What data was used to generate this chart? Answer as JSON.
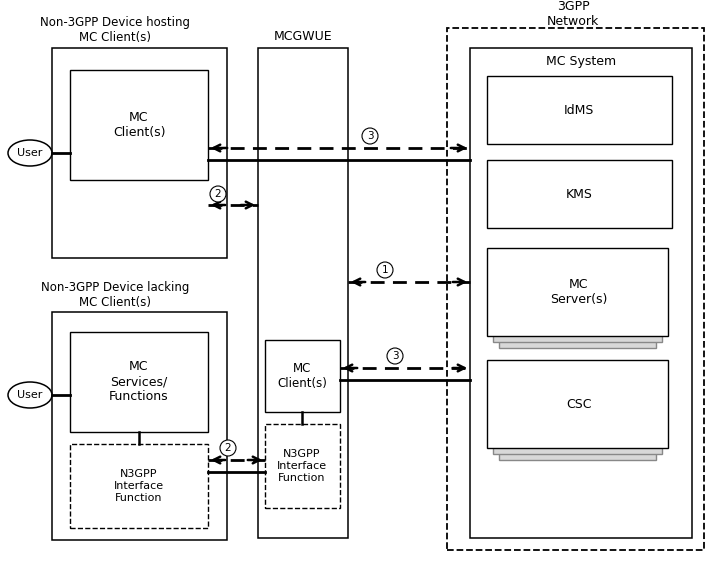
{
  "fig_width": 7.1,
  "fig_height": 5.66,
  "bg_color": "#ffffff",
  "title_3gpp": "3GPP\nNetwork",
  "title_mcsystem": "MC System",
  "label_mcgwue": "MCGWUE",
  "label_non3gpp_hosting": "Non-3GPP Device hosting\nMC Client(s)",
  "label_non3gpp_lacking": "Non-3GPP Device lacking\nMC Client(s)",
  "label_user1": "User",
  "label_user2": "User",
  "label_mc_client_top": "MC\nClient(s)",
  "label_mc_services": "MC\nServices/\nFunctions",
  "label_mc_client_bot": "MC\nClient(s)",
  "label_n3gpp_left": "N3GPP\nInterface\nFunction",
  "label_n3gpp_right": "N3GPP\nInterface\nFunction",
  "label_idms": "IdMS",
  "label_kms": "KMS",
  "label_mc_server": "MC\nServer(s)",
  "label_csc": "CSC"
}
